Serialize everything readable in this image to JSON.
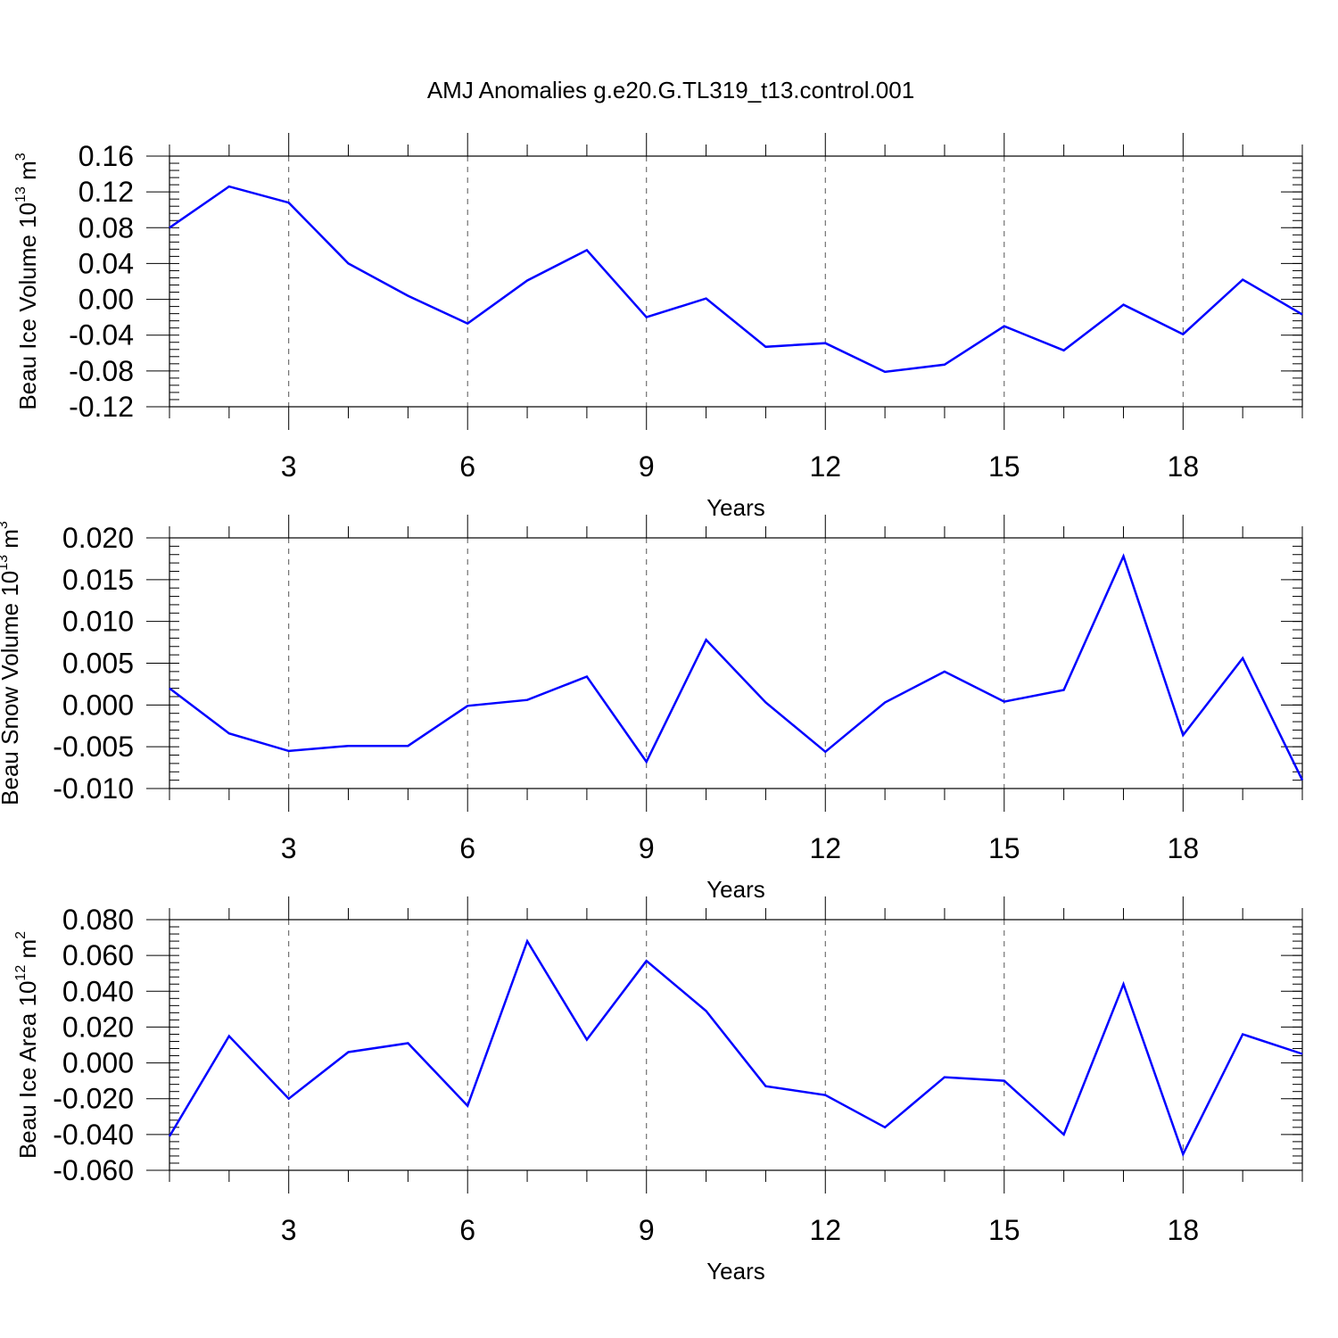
{
  "title": "AMJ Anomalies g.e20.G.TL319_t13.control.001",
  "colors": {
    "line": "#0000ff",
    "axis": "#000000",
    "grid": "#555555"
  },
  "chart_data": [
    {
      "type": "line",
      "ylabel": {
        "text": "Beau Ice Volume 10",
        "exp": "13",
        "unit": " m",
        "unit_exp": "3"
      },
      "xlabel": "Years",
      "xlim": [
        1,
        20
      ],
      "ylim": [
        -0.12,
        0.16
      ],
      "x_ticks": [
        3,
        6,
        9,
        12,
        15,
        18
      ],
      "x_tick_labels": [
        "3",
        "6",
        "9",
        "12",
        "15",
        "18"
      ],
      "y_ticks": [
        -0.12,
        -0.08,
        -0.04,
        0.0,
        0.04,
        0.08,
        0.12,
        0.16
      ],
      "y_tick_labels": [
        "-0.12",
        "-0.08",
        "-0.04",
        "0.00",
        "0.04",
        "0.08",
        "0.12",
        "0.16"
      ],
      "y_minor_step": 0.008,
      "grid": "vertical dashed at major x ticks",
      "x": [
        1,
        2,
        3,
        4,
        5,
        6,
        7,
        8,
        9,
        10,
        11,
        12,
        13,
        14,
        15,
        16,
        17,
        18,
        19,
        20
      ],
      "y": [
        0.08,
        0.126,
        0.108,
        0.04,
        0.004,
        -0.027,
        0.021,
        0.055,
        -0.02,
        0.001,
        -0.053,
        -0.049,
        -0.081,
        -0.073,
        -0.03,
        -0.057,
        -0.006,
        -0.039,
        0.022,
        -0.017
      ]
    },
    {
      "type": "line",
      "ylabel": {
        "text": "Beau Snow Volume 10",
        "exp": "13",
        "unit": " m",
        "unit_exp": "3"
      },
      "xlabel": "Years",
      "xlim": [
        1,
        20
      ],
      "ylim": [
        -0.01,
        0.02
      ],
      "x_ticks": [
        3,
        6,
        9,
        12,
        15,
        18
      ],
      "x_tick_labels": [
        "3",
        "6",
        "9",
        "12",
        "15",
        "18"
      ],
      "y_ticks": [
        -0.01,
        -0.005,
        0.0,
        0.005,
        0.01,
        0.015,
        0.02
      ],
      "y_tick_labels": [
        "-0.010",
        "-0.005",
        "0.000",
        "0.005",
        "0.010",
        "0.015",
        "0.020"
      ],
      "y_minor_step": 0.001,
      "grid": "vertical dashed at major x ticks",
      "x": [
        1,
        2,
        3,
        4,
        5,
        6,
        7,
        8,
        9,
        10,
        11,
        12,
        13,
        14,
        15,
        16,
        17,
        18,
        19,
        20
      ],
      "y": [
        0.002,
        -0.0034,
        -0.0055,
        -0.0049,
        -0.0049,
        -0.0001,
        0.0006,
        0.0034,
        -0.0068,
        0.0078,
        0.0003,
        -0.0056,
        0.0003,
        0.004,
        0.0004,
        0.0018,
        0.0178,
        -0.0036,
        0.0056,
        -0.009
      ]
    },
    {
      "type": "line",
      "ylabel": {
        "text": "Beau Ice Area 10",
        "exp": "12",
        "unit": " m",
        "unit_exp": "2"
      },
      "xlabel": "Years",
      "xlim": [
        1,
        20
      ],
      "ylim": [
        -0.06,
        0.08
      ],
      "x_ticks": [
        3,
        6,
        9,
        12,
        15,
        18
      ],
      "x_tick_labels": [
        "3",
        "6",
        "9",
        "12",
        "15",
        "18"
      ],
      "y_ticks": [
        -0.06,
        -0.04,
        -0.02,
        0.0,
        0.02,
        0.04,
        0.06,
        0.08
      ],
      "y_tick_labels": [
        "-0.060",
        "-0.040",
        "-0.020",
        "0.000",
        "0.020",
        "0.040",
        "0.060",
        "0.080"
      ],
      "y_minor_step": 0.004,
      "grid": "vertical dashed at major x ticks",
      "x": [
        1,
        2,
        3,
        4,
        5,
        6,
        7,
        8,
        9,
        10,
        11,
        12,
        13,
        14,
        15,
        16,
        17,
        18,
        19,
        20
      ],
      "y": [
        -0.041,
        0.015,
        -0.02,
        0.006,
        0.011,
        -0.024,
        0.068,
        0.013,
        0.057,
        0.029,
        -0.013,
        -0.018,
        -0.036,
        -0.008,
        -0.01,
        -0.04,
        0.044,
        -0.051,
        0.016,
        0.005
      ]
    }
  ]
}
